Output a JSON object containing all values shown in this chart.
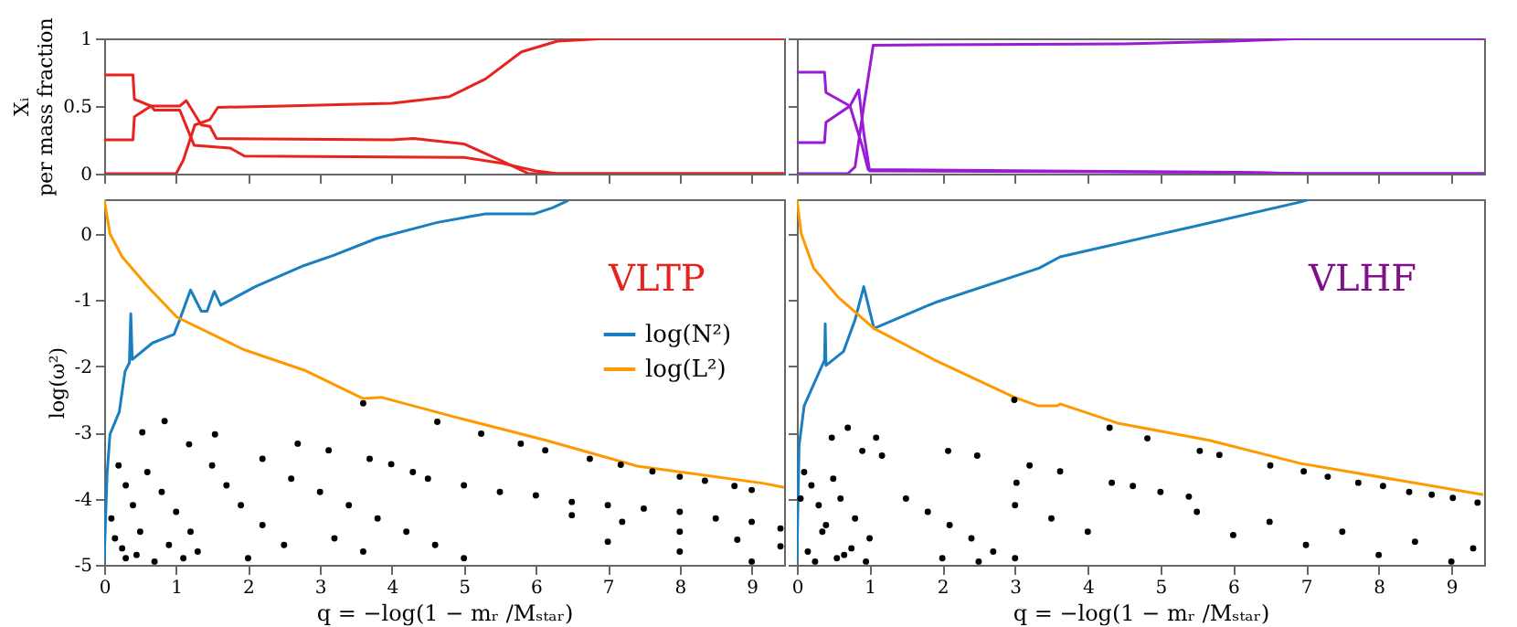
{
  "chart_data": [
    {
      "type": "line",
      "ylabel": "Xᵢ per mass fraction",
      "xlim": [
        0,
        9.45
      ],
      "xticks": [
        0,
        1,
        2,
        3,
        4,
        5,
        6,
        7,
        8,
        9
      ],
      "ylim": [
        0,
        1
      ],
      "yticks": [
        0,
        0.5,
        1
      ],
      "tick_labels": "y",
      "series": [
        {
          "color": "#e8231f",
          "x": [
            0,
            0.4,
            0.42,
            0.65,
            0.7,
            1.05,
            1.25,
            1.75,
            1.95,
            5.0,
            5.5,
            6.0,
            6.3,
            9.45
          ],
          "values": [
            0.73,
            0.73,
            0.55,
            0.5,
            0.47,
            0.47,
            0.21,
            0.19,
            0.13,
            0.12,
            0.08,
            0.02,
            0,
            0
          ]
        },
        {
          "color": "#e8231f",
          "x": [
            0,
            0.4,
            0.42,
            0.65,
            1.05,
            1.14,
            1.35,
            1.47,
            1.56,
            4.0,
            4.3,
            5.0,
            5.5,
            5.9,
            9.45
          ],
          "values": [
            0.25,
            0.25,
            0.42,
            0.5,
            0.5,
            0.54,
            0.36,
            0.35,
            0.26,
            0.25,
            0.26,
            0.22,
            0.1,
            0,
            0
          ]
        },
        {
          "color": "#e8231f",
          "x": [
            0,
            1.0,
            1.1,
            1.26,
            1.47,
            1.58,
            2.5,
            4.0,
            4.8,
            5.3,
            5.8,
            6.3,
            7.0,
            9.45
          ],
          "values": [
            0,
            0,
            0.1,
            0.36,
            0.4,
            0.49,
            0.5,
            0.52,
            0.57,
            0.7,
            0.9,
            0.98,
            1,
            1
          ]
        }
      ]
    },
    {
      "type": "line",
      "xlim": [
        0,
        9.45
      ],
      "xticks": [
        0,
        1,
        2,
        3,
        4,
        5,
        6,
        7,
        8,
        9
      ],
      "ylim": [
        0,
        1
      ],
      "yticks": [
        0,
        0.5,
        1
      ],
      "tick_labels": false,
      "series": [
        {
          "color": "#9b1ad6",
          "x": [
            0,
            0.38,
            0.4,
            0.73,
            0.9,
            0.98,
            6.0,
            7.0,
            9.45
          ],
          "values": [
            0.75,
            0.75,
            0.6,
            0.5,
            0.2,
            0.03,
            0.01,
            0,
            0
          ]
        },
        {
          "color": "#9b1ad6",
          "x": [
            0,
            0.38,
            0.4,
            0.73,
            0.85,
            0.92,
            1.0,
            6.0,
            7.0,
            9.45
          ],
          "values": [
            0.23,
            0.23,
            0.38,
            0.5,
            0.62,
            0.3,
            0.02,
            0.01,
            0,
            0
          ]
        },
        {
          "color": "#9b1ad6",
          "x": [
            0,
            0.7,
            0.8,
            0.92,
            1.05,
            4.5,
            6.0,
            7.0,
            9.45
          ],
          "values": [
            0,
            0,
            0.05,
            0.5,
            0.95,
            0.96,
            0.98,
            1,
            1
          ]
        }
      ]
    },
    {
      "type": "line",
      "xlabel": "q = −log(1 − mᵣ /Mₛₜₐᵣ)",
      "ylabel": "log(ω²)",
      "xlim": [
        0,
        9.45
      ],
      "xticks": [
        0,
        1,
        2,
        3,
        4,
        5,
        6,
        7,
        8,
        9
      ],
      "ylim": [
        -5,
        0.52
      ],
      "yticks": [
        -5,
        -4,
        -3,
        -2,
        -1,
        0
      ],
      "legend": "right",
      "annotations": [
        "VLTP"
      ],
      "series": [
        {
          "name": "log(N²)",
          "color": "#1a7fc1",
          "x": [
            0,
            0.04,
            0.08,
            0.21,
            0.29,
            0.35,
            0.37,
            0.39,
            0.67,
            0.97,
            1.05,
            1.2,
            1.35,
            1.43,
            1.53,
            1.62,
            2.1,
            2.78,
            3.18,
            3.79,
            4.63,
            5.3,
            5.98,
            6.23,
            6.45
          ],
          "values": [
            -4.94,
            -3.64,
            -3.03,
            -2.69,
            -2.08,
            -1.95,
            -1.21,
            -1.9,
            -1.65,
            -1.52,
            -1.3,
            -0.85,
            -1.17,
            -1.17,
            -0.87,
            -1.08,
            -0.8,
            -0.48,
            -0.33,
            -0.07,
            0.17,
            0.3,
            0.3,
            0.39,
            0.5
          ]
        },
        {
          "name": "log(L²)",
          "color": "#ff9900",
          "x": [
            0,
            0.08,
            0.25,
            0.59,
            1.01,
            1.94,
            2.78,
            3.6,
            3.85,
            4.88,
            6.14,
            7.41,
            9.17,
            9.45
          ],
          "values": [
            0.52,
            0,
            -0.35,
            -0.78,
            -1.26,
            -1.75,
            -2.06,
            -2.49,
            -2.47,
            -2.77,
            -3.12,
            -3.51,
            -3.77,
            -3.83
          ]
        },
        {
          "type": "scatter",
          "color": "#000000",
          "x": [
            0.53,
            0.84,
            1.18,
            1.54,
            2.2,
            2.69,
            3.12,
            3.6,
            3.69,
            3.99,
            4.29,
            4.63,
            5.24,
            5.79,
            6.13,
            6.75,
            7.18,
            7.62,
            8.0,
            8.35,
            8.76,
            9.0,
            4.5,
            5.0,
            5.5,
            6.0,
            6.5,
            7.0,
            7.5,
            8.0,
            8.5,
            9.0,
            9.4,
            6.5,
            7.2,
            8.0,
            8.8,
            9.4,
            7.0,
            8.0,
            9.0,
            0.1,
            0.2,
            0.3,
            0.4,
            0.6,
            0.8,
            0.5,
            1.0,
            1.2,
            1.5,
            1.7,
            1.9,
            2.2,
            2.5,
            1.3,
            2.0,
            2.6,
            3.0,
            3.4,
            3.8,
            4.2,
            4.6,
            5.0,
            3.2,
            3.6,
            0.3,
            0.7,
            0.15,
            0.25,
            0.45,
            0.9,
            1.1
          ],
          "values": [
            -3.0,
            -2.83,
            -3.18,
            -3.03,
            -3.4,
            -3.17,
            -3.27,
            -2.56,
            -3.4,
            -3.48,
            -3.6,
            -2.84,
            -3.02,
            -3.17,
            -3.27,
            -3.4,
            -3.49,
            -3.59,
            -3.67,
            -3.73,
            -3.81,
            -3.87,
            -3.7,
            -3.8,
            -3.9,
            -3.95,
            -4.05,
            -4.1,
            -4.15,
            -4.2,
            -4.3,
            -4.35,
            -4.45,
            -4.25,
            -4.35,
            -4.5,
            -4.62,
            -4.72,
            -4.65,
            -4.8,
            -4.95,
            -4.3,
            -3.5,
            -3.8,
            -4.1,
            -3.6,
            -3.9,
            -4.5,
            -4.2,
            -4.5,
            -3.5,
            -3.8,
            -4.1,
            -4.4,
            -4.7,
            -4.8,
            -4.9,
            -3.7,
            -3.9,
            -4.1,
            -4.3,
            -4.5,
            -4.7,
            -4.9,
            -4.6,
            -4.8,
            -4.9,
            -4.95,
            -4.6,
            -4.75,
            -4.85,
            -4.7,
            -4.9
          ]
        }
      ]
    },
    {
      "type": "line",
      "xlabel": "q = −log(1 − mᵣ /Mₛₜₐᵣ)",
      "xlim": [
        0,
        9.45
      ],
      "xticks": [
        0,
        1,
        2,
        3,
        4,
        5,
        6,
        7,
        8,
        9
      ],
      "ylim": [
        -5,
        0.52
      ],
      "yticks": [
        -5,
        -4,
        -3,
        -2,
        -1,
        0
      ],
      "tick_labels": "x",
      "annotations": [
        "VLHF"
      ],
      "series": [
        {
          "color": "#1a7fc1",
          "x": [
            0,
            0.03,
            0.1,
            0.31,
            0.38,
            0.39,
            0.4,
            0.64,
            0.8,
            0.92,
            1.06,
            1.9,
            3.33,
            3.62,
            5.42,
            6.93,
            7.05
          ],
          "values": [
            -4.94,
            -3.2,
            -2.6,
            -2.08,
            -1.91,
            -1.36,
            -1.99,
            -1.78,
            -1.3,
            -0.8,
            -1.43,
            -1.04,
            -0.52,
            -0.35,
            0.1,
            0.48,
            0.52
          ]
        },
        {
          "color": "#ff9900",
          "x": [
            0,
            0.06,
            0.23,
            0.56,
            1.06,
            1.9,
            2.99,
            3.32,
            3.58,
            3.62,
            4.41,
            5.67,
            6.93,
            9.44
          ],
          "values": [
            0.52,
            0,
            -0.52,
            -0.95,
            -1.43,
            -1.91,
            -2.47,
            -2.6,
            -2.6,
            -2.57,
            -2.86,
            -3.12,
            -3.47,
            -3.94
          ]
        },
        {
          "type": "scatter",
          "color": "#000000",
          "x": [
            0.48,
            0.7,
            0.9,
            1.09,
            1.17,
            2.08,
            2.48,
            2.99,
            3.02,
            3.2,
            3.62,
            4.3,
            4.33,
            4.62,
            4.82,
            5.0,
            5.39,
            5.54,
            5.81,
            6.51,
            6.97,
            7.3,
            7.72,
            8.06,
            8.42,
            8.73,
            9.02,
            9.36,
            5.5,
            6.5,
            7.5,
            8.5,
            9.3,
            6.0,
            7.0,
            8.0,
            9.0,
            0.05,
            0.1,
            0.2,
            0.3,
            0.4,
            0.5,
            0.6,
            0.8,
            1.0,
            0.15,
            0.35,
            0.55,
            0.75,
            0.95,
            1.5,
            1.8,
            2.1,
            2.4,
            2.7,
            3.0,
            3.5,
            4.0,
            2.0,
            2.5,
            3.0,
            0.25,
            0.65
          ],
          "values": [
            -3.08,
            -2.93,
            -3.28,
            -3.08,
            -3.35,
            -3.28,
            -3.35,
            -2.51,
            -3.76,
            -3.5,
            -3.59,
            -2.93,
            -3.76,
            -3.81,
            -3.09,
            -3.9,
            -3.97,
            -3.28,
            -3.34,
            -3.5,
            -3.59,
            -3.67,
            -3.76,
            -3.81,
            -3.9,
            -3.94,
            -3.99,
            -4.06,
            -4.2,
            -4.35,
            -4.5,
            -4.65,
            -4.75,
            -4.55,
            -4.7,
            -4.85,
            -4.95,
            -4.0,
            -3.6,
            -3.8,
            -4.1,
            -4.4,
            -3.7,
            -4.0,
            -4.3,
            -4.6,
            -4.8,
            -4.5,
            -4.9,
            -4.75,
            -4.95,
            -4.0,
            -4.2,
            -4.4,
            -4.6,
            -4.8,
            -4.1,
            -4.3,
            -4.5,
            -4.9,
            -4.95,
            -4.9,
            -4.95,
            -4.85
          ]
        }
      ]
    }
  ]
}
